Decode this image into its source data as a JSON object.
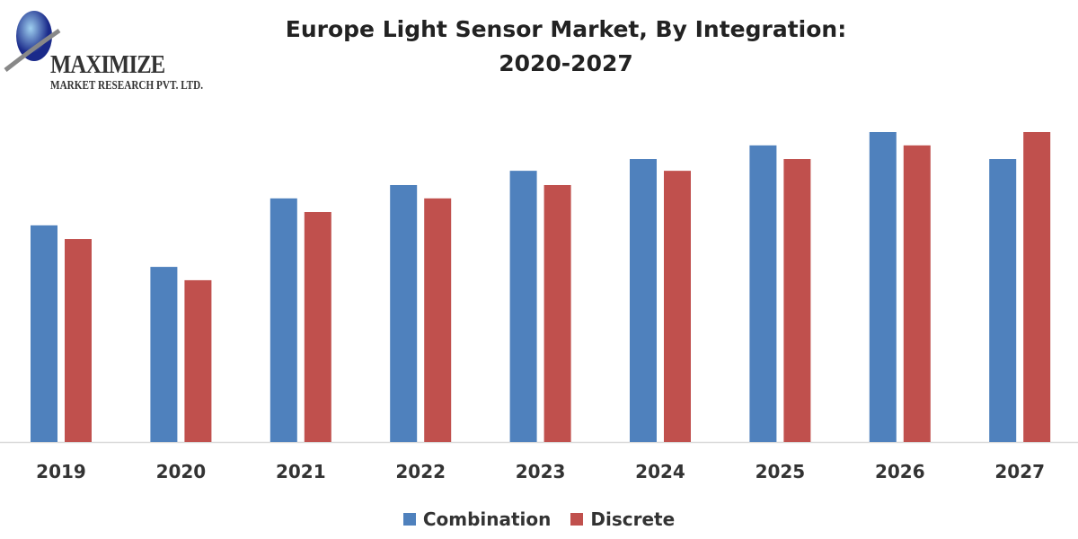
{
  "logo": {
    "line1": "MAXIMIZE",
    "line2": "MARKET RESEARCH PVT. LTD."
  },
  "chart_data": {
    "type": "bar",
    "title_line1": "Europe Light Sensor Market, By Integration:",
    "title_line2": "2020-2027",
    "categories": [
      "2019",
      "2020",
      "2021",
      "2022",
      "2023",
      "2024",
      "2025",
      "2026",
      "2027"
    ],
    "series": [
      {
        "name": "Combination",
        "color": "#4f81bd",
        "values": [
          69.9,
          56.5,
          78.6,
          82.9,
          87.5,
          91.3,
          95.7,
          100,
          91.3
        ]
      },
      {
        "name": "Discrete",
        "color": "#c0504d",
        "values": [
          65.5,
          52.2,
          74.2,
          78.6,
          82.9,
          87.5,
          91.3,
          95.7,
          100
        ]
      }
    ],
    "ylim": [
      0,
      100
    ],
    "y_axis_shown": false,
    "grid": false,
    "legend_position": "bottom"
  }
}
